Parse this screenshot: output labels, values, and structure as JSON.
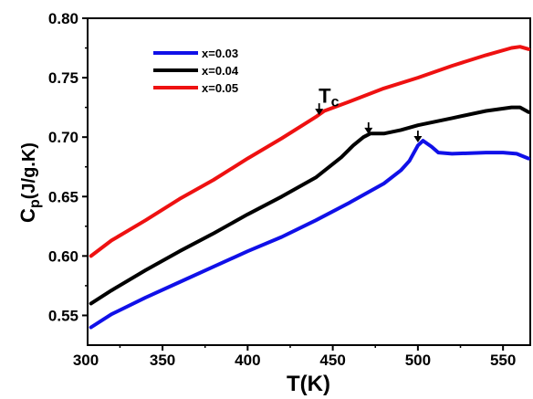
{
  "chart_data": {
    "type": "line",
    "xlabel": "T(K)",
    "ylabel_main": "C",
    "ylabel_sub": "p",
    "ylabel_unit": "(J/g.K)",
    "xlim": [
      306,
      566
    ],
    "ylim": [
      0.525,
      0.8
    ],
    "xticks": [
      300,
      350,
      400,
      450,
      500,
      550
    ],
    "yticks": [
      0.55,
      0.6,
      0.65,
      0.7,
      0.75,
      0.8
    ],
    "xtick_labels": [
      "300",
      "350",
      "400",
      "450",
      "500",
      "550"
    ],
    "ytick_labels": [
      "0.55",
      "0.60",
      "0.65",
      "0.70",
      "0.75",
      "0.80"
    ],
    "legend_placement": "top-left",
    "annotation": {
      "text_main": "T",
      "text_sub": "c",
      "x": 446,
      "y": 0.729
    },
    "arrows": [
      {
        "x": 442,
        "y": 0.7185
      },
      {
        "x": 471,
        "y": 0.7025
      },
      {
        "x": 500,
        "y": 0.6955
      }
    ],
    "series": [
      {
        "name": "x=0.03",
        "color": "#1010e8",
        "x": [
          308,
          320,
          340,
          360,
          380,
          400,
          420,
          440,
          460,
          480,
          490,
          495,
          500,
          503,
          508,
          512,
          520,
          540,
          550,
          558,
          565
        ],
        "y": [
          0.54,
          0.551,
          0.565,
          0.578,
          0.591,
          0.604,
          0.616,
          0.63,
          0.645,
          0.661,
          0.672,
          0.68,
          0.693,
          0.697,
          0.692,
          0.687,
          0.686,
          0.687,
          0.687,
          0.686,
          0.682
        ]
      },
      {
        "name": "x=0.04",
        "color": "#000000",
        "x": [
          308,
          320,
          340,
          360,
          380,
          400,
          420,
          440,
          455,
          462,
          468,
          472,
          476,
          480,
          490,
          500,
          520,
          540,
          555,
          560,
          565
        ],
        "y": [
          0.56,
          0.571,
          0.588,
          0.604,
          0.619,
          0.635,
          0.65,
          0.666,
          0.683,
          0.693,
          0.7,
          0.703,
          0.703,
          0.703,
          0.706,
          0.71,
          0.716,
          0.722,
          0.725,
          0.725,
          0.721
        ]
      },
      {
        "name": "x=0.05",
        "color": "#ee1111",
        "x": [
          308,
          320,
          340,
          360,
          380,
          400,
          420,
          440,
          445,
          460,
          480,
          500,
          520,
          540,
          555,
          560,
          565
        ],
        "y": [
          0.6,
          0.613,
          0.63,
          0.648,
          0.664,
          0.682,
          0.699,
          0.717,
          0.722,
          0.73,
          0.741,
          0.75,
          0.76,
          0.769,
          0.775,
          0.776,
          0.774
        ]
      }
    ]
  }
}
